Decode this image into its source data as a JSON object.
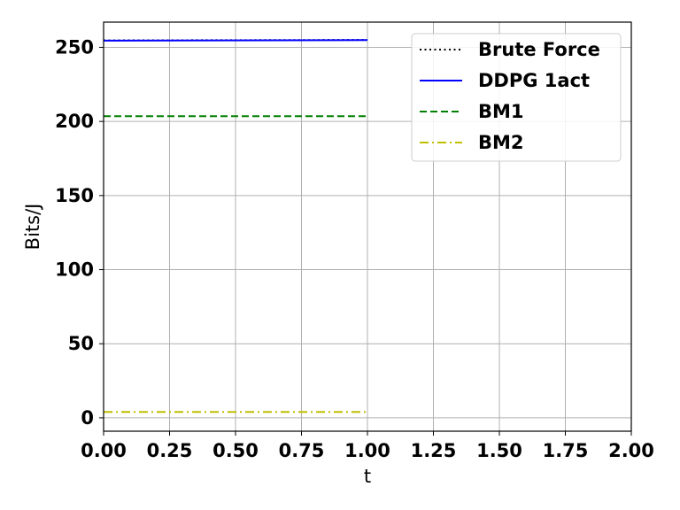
{
  "chart_data": {
    "type": "line",
    "xlabel": "t",
    "ylabel": "Bits/J",
    "xlim": [
      0,
      2
    ],
    "ylim": [
      -9,
      267
    ],
    "x_ticks": [
      "0.00",
      "0.25",
      "0.50",
      "0.75",
      "1.00",
      "1.25",
      "1.50",
      "1.75",
      "2.00"
    ],
    "y_ticks": [
      "0",
      "50",
      "100",
      "150",
      "200",
      "250"
    ],
    "grid": true,
    "legend_position": "top-right",
    "series": [
      {
        "name": "Brute Force",
        "x": [
          0,
          1
        ],
        "y": [
          254.7,
          255.0
        ],
        "color": "#000000",
        "style": "dotted"
      },
      {
        "name": "DDPG 1act",
        "x": [
          0,
          1
        ],
        "y": [
          254.5,
          254.9
        ],
        "color": "#0000ff",
        "style": "solid"
      },
      {
        "name": "BM1",
        "x": [
          0,
          1
        ],
        "y": [
          203.5,
          203.5
        ],
        "color": "#008000",
        "style": "dashed"
      },
      {
        "name": "BM2",
        "x": [
          0,
          1
        ],
        "y": [
          4.0,
          4.0
        ],
        "color": "#bfbf00",
        "style": "dashdot"
      }
    ]
  }
}
